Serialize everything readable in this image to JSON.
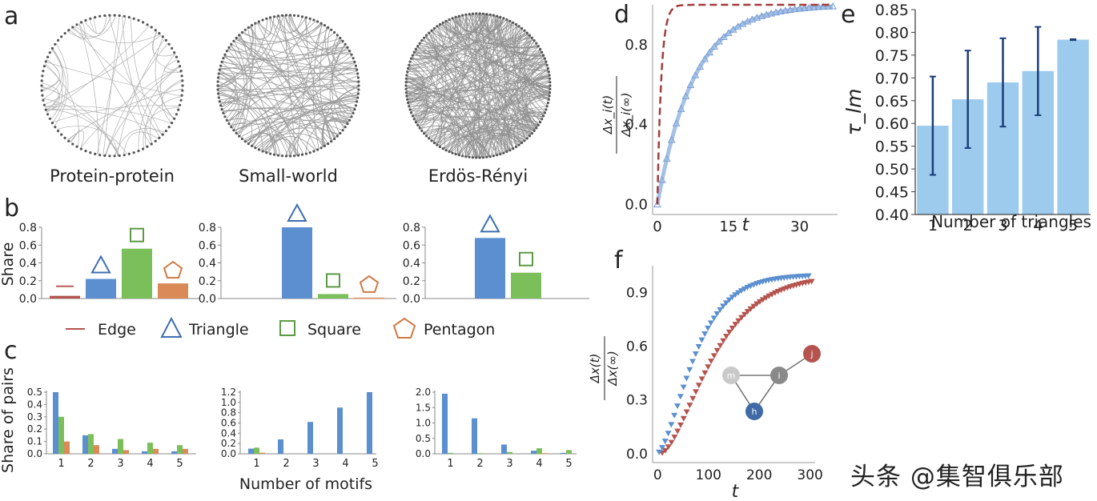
{
  "panel_letters": [
    "a",
    "b",
    "c",
    "d",
    "e",
    "f"
  ],
  "watermark": "头条 @集智俱乐部",
  "colors": {
    "edge": "#b5544f",
    "triangle": "#5b8fcf",
    "square": "#7bbf5a",
    "pentagon": "#d98a57",
    "bar_e": "#9ccbee",
    "err_e": "#1c3f7a",
    "dashed_d": "#a33b3b",
    "curve_d": "#5b8fcf",
    "f_blue": "#5b8fcf",
    "f_red": "#b5544f"
  },
  "chart_data": [
    {
      "id": "a",
      "type": "network",
      "networks": [
        "Protein-protein",
        "Small-world",
        "Erdös-Rényi"
      ]
    },
    {
      "id": "b1",
      "type": "bar",
      "ylabel": "Share",
      "categories": [
        "Edge",
        "Triangle",
        "Square",
        "Pentagon"
      ],
      "values": [
        0.03,
        0.22,
        0.56,
        0.17
      ],
      "ylim": [
        0,
        0.8
      ],
      "yticks": [
        "0.0",
        "0.2",
        "0.4",
        "0.6",
        "0.8"
      ]
    },
    {
      "id": "b2",
      "type": "bar",
      "categories": [
        "Edge",
        "Triangle",
        "Square",
        "Pentagon"
      ],
      "values": [
        0,
        0.8,
        0.05,
        0.01
      ],
      "ylim": [
        0,
        0.8
      ],
      "yticks": [
        "0.0",
        "0.2",
        "0.4",
        "0.6",
        "0.8"
      ]
    },
    {
      "id": "b3",
      "type": "bar",
      "categories": [
        "Edge",
        "Triangle",
        "Square",
        "Pentagon"
      ],
      "values": [
        0,
        0.68,
        0.29,
        0
      ],
      "ylim": [
        0,
        0.8
      ],
      "yticks": [
        "0.0",
        "0.2",
        "0.4",
        "0.6",
        "0.8"
      ]
    },
    {
      "id": "legend",
      "items": [
        "Edge",
        "Triangle",
        "Square",
        "Pentagon"
      ]
    },
    {
      "id": "c1",
      "type": "bar",
      "ylabel": "Share of pairs",
      "categories": [
        "1",
        "2",
        "3",
        "4",
        "5"
      ],
      "series": [
        {
          "values": [
            0.5,
            0.15,
            0.04,
            0.02,
            0.02
          ]
        },
        {
          "values": [
            0.3,
            0.16,
            0.12,
            0.09,
            0.07
          ]
        },
        {
          "values": [
            0.1,
            0.07,
            0.03,
            0.04,
            0.04
          ]
        }
      ],
      "ylim": [
        0,
        0.5
      ],
      "yticks": [
        "0.0",
        "0.1",
        "0.2",
        "0.3",
        "0.4",
        "0.5"
      ]
    },
    {
      "id": "c2",
      "type": "bar",
      "xlabel": "Number of motifs",
      "categories": [
        "1",
        "2",
        "3",
        "4",
        "5"
      ],
      "series": [
        {
          "values": [
            0.1,
            0.28,
            0.62,
            0.9,
            1.2
          ]
        },
        {
          "values": [
            0.12,
            0,
            0,
            0,
            0
          ]
        },
        {
          "values": [
            0.02,
            0,
            0,
            0,
            0
          ]
        }
      ],
      "ylim": [
        0,
        1.2
      ],
      "yticks": [
        "0.0",
        "0.2",
        "0.4",
        "0.6",
        "0.8",
        "1.0",
        "1.2"
      ]
    },
    {
      "id": "c3",
      "type": "bar",
      "categories": [
        "1",
        "2",
        "3",
        "4",
        "5"
      ],
      "series": [
        {
          "values": [
            1.95,
            1.15,
            0.3,
            0.1,
            0.03
          ]
        },
        {
          "values": [
            0.03,
            0.02,
            0.06,
            0.18,
            0.12
          ]
        },
        {
          "values": [
            0,
            0,
            0,
            0.02,
            0
          ]
        }
      ],
      "ylim": [
        0,
        2.0
      ],
      "yticks": [
        "0.0",
        "0.5",
        "1.0",
        "1.5",
        "2.0"
      ]
    },
    {
      "id": "d",
      "type": "line",
      "xlabel": "t",
      "ylabel_top": "Δx_i(t)",
      "ylabel_bottom": "Δx_i(∞)",
      "xlim": [
        -1,
        38
      ],
      "ylim": [
        -0.05,
        1.0
      ],
      "xticks": [
        "0",
        "15",
        "30"
      ],
      "yticks": [
        "0.0",
        "0.4",
        "0.8"
      ],
      "dashed_rate": 1.2,
      "curve_rate": 0.13,
      "marker_t": [
        0,
        1,
        2,
        3,
        4,
        5,
        6,
        7,
        8,
        9,
        10,
        11,
        12,
        13,
        14,
        15,
        16,
        17,
        18,
        19,
        20,
        21,
        22,
        23,
        24,
        25,
        26,
        27,
        28,
        29,
        30,
        31,
        32,
        33,
        34,
        35,
        36,
        37
      ]
    },
    {
      "id": "e",
      "type": "bar",
      "xlabel": "Number of triangles",
      "ylabel": "τ_lm",
      "categories": [
        "1",
        "2",
        "3",
        "4",
        "5"
      ],
      "values": [
        0.595,
        0.653,
        0.69,
        0.715,
        0.784
      ],
      "errors": [
        0.108,
        0.107,
        0.097,
        0.097,
        0.001
      ],
      "ylim": [
        0.4,
        0.85
      ],
      "yticks": [
        "0.40",
        "0.45",
        "0.50",
        "0.55",
        "0.60",
        "0.65",
        "0.70",
        "0.75",
        "0.80",
        "0.85"
      ]
    },
    {
      "id": "f",
      "type": "scatter",
      "xlabel": "t",
      "ylabel_top": "Δx(t)",
      "ylabel_bottom": "Δx(∞)",
      "xlim": [
        -10,
        310
      ],
      "ylim": [
        -0.05,
        1.05
      ],
      "xticks": [
        "0",
        "100",
        "200",
        "300"
      ],
      "yticks": [
        "0.0",
        "0.3",
        "0.6",
        "0.9"
      ],
      "blue_rate": 0.024,
      "red_rate": 0.017,
      "nodes": [
        "m",
        "i",
        "h",
        "j"
      ]
    }
  ]
}
